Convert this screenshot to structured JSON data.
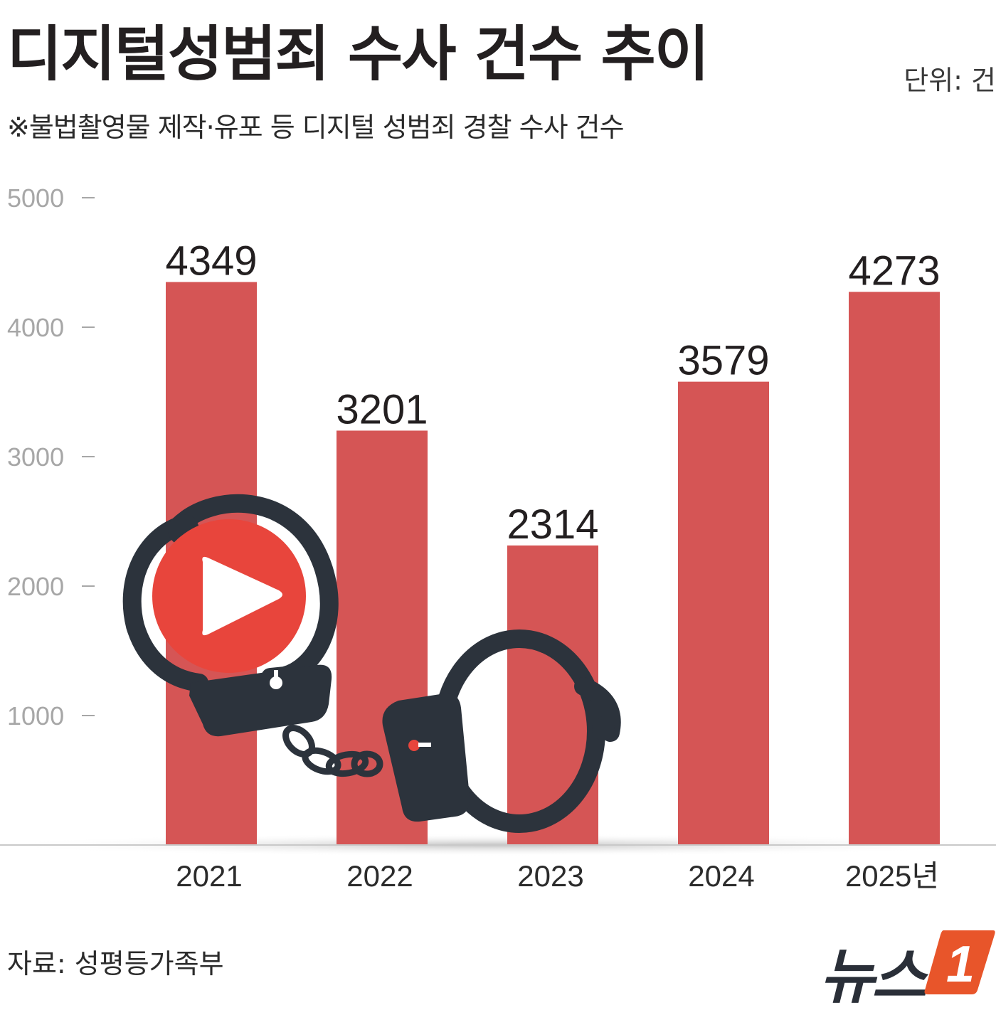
{
  "header": {
    "title": "디지털성범죄 수사 건수 추이",
    "unit": "단위: 건",
    "subtitle": "※불법촬영물 제작·유포 등 디지털 성범죄 경찰 수사 건수"
  },
  "footer": {
    "source": "자료: 성평등가족부",
    "logo_text": "뉴스",
    "logo_mark": "1"
  },
  "colors": {
    "bar": "#d55555",
    "axis": "#a7a7a7",
    "text": "#231f20",
    "logo_orange": "#e8552a",
    "handcuff": "#2c333c",
    "play_red": "#e8453c"
  },
  "illustration": {
    "icons": [
      "handcuffs-icon",
      "play-button-icon"
    ]
  },
  "chart_data": {
    "type": "bar",
    "categories": [
      "2021",
      "2022",
      "2023",
      "2024",
      "2025년"
    ],
    "values": [
      4349,
      3201,
      2314,
      3579,
      4273
    ],
    "yticks": [
      1000,
      2000,
      3000,
      4000,
      5000
    ],
    "ylim": [
      0,
      5000
    ],
    "title": "디지털성범죄 수사 건수 추이",
    "subtitle": "※불법촬영물 제작·유포 등 디지털 성범죄 경찰 수사 건수",
    "unit": "단위: 건",
    "grid": false
  }
}
